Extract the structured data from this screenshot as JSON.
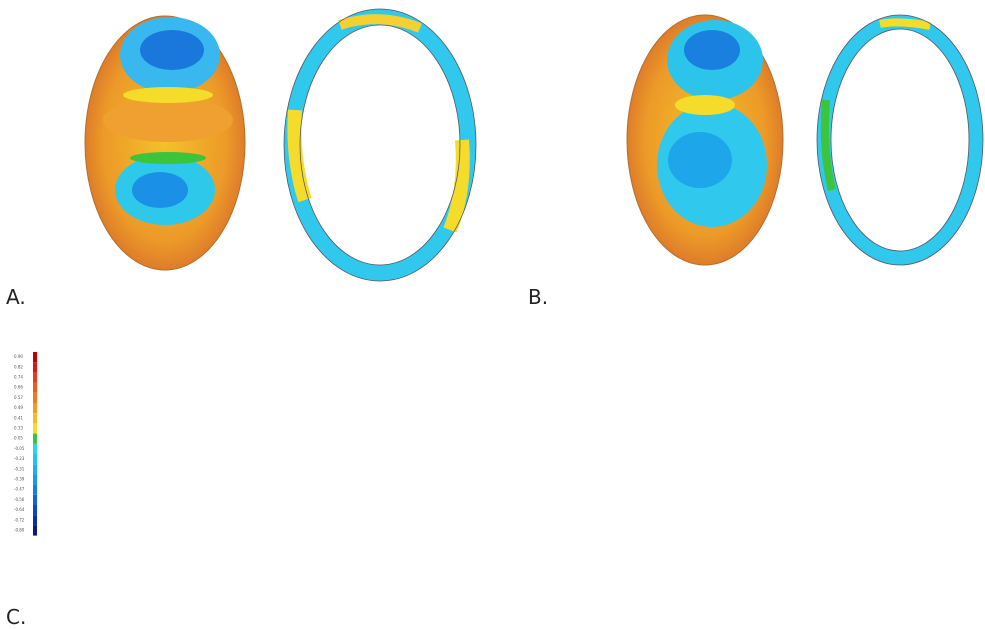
{
  "panels": [
    {
      "label": "A."
    },
    {
      "label": "B."
    },
    {
      "label": "C."
    }
  ],
  "colorbar": [
    {
      "label": "0.90",
      "color": "#c00000"
    },
    {
      "label": "0.82",
      "color": "#d81818"
    },
    {
      "label": "0.74",
      "color": "#e83a1c"
    },
    {
      "label": "0.66",
      "color": "#ee5a1e"
    },
    {
      "label": "0.57",
      "color": "#f07a20"
    },
    {
      "label": "0.49",
      "color": "#f29a22"
    },
    {
      "label": "0.41",
      "color": "#f4bc26"
    },
    {
      "label": "0.33",
      "color": "#f6dc2a"
    },
    {
      "label": "0.05",
      "color": "#3cc43c"
    },
    {
      "label": "-0.05",
      "color": "#28d8e8"
    },
    {
      "label": "-0.23",
      "color": "#20c4ee"
    },
    {
      "label": "-0.31",
      "color": "#1cb0ee"
    },
    {
      "label": "-0.39",
      "color": "#189aec"
    },
    {
      "label": "-0.47",
      "color": "#1480e6"
    },
    {
      "label": "-0.56",
      "color": "#1064d8"
    },
    {
      "label": "-0.64",
      "color": "#0c48c4"
    },
    {
      "label": "-0.72",
      "color": "#0a2ea8"
    },
    {
      "label": "-0.80",
      "color": "#081a80"
    }
  ]
}
